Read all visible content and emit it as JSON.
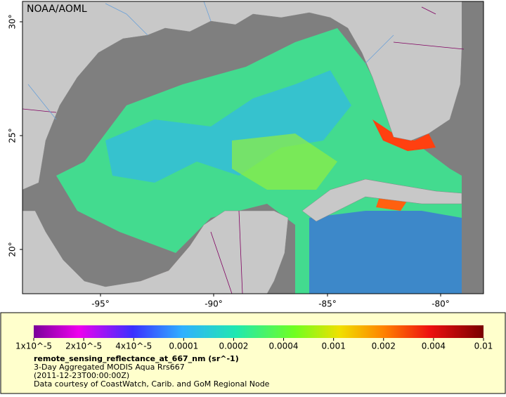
{
  "map": {
    "credit": "NOAA/AOML",
    "lat_ticks": [
      "30°",
      "25°",
      "20°"
    ],
    "lon_ticks": [
      "-95°",
      "-90°",
      "-85°",
      "-80°"
    ]
  },
  "colorbar": {
    "labels": [
      "1x10^-5",
      "2x10^-5",
      "4x10^-5",
      "0.0001",
      "0.0002",
      "0.0004",
      "0.001",
      "0.002",
      "0.004",
      "0.01"
    ]
  },
  "legend": {
    "variable": "remote_sensing_reflectance_at_667_nm (sr^-1)",
    "lines": [
      "3-Day Aggregated MODIS Aqua Rrs667",
      "(2011-12-23T00:00:00Z)",
      "Data courtesy of CoastWatch, Carib. and GoM Regional Node"
    ]
  }
}
